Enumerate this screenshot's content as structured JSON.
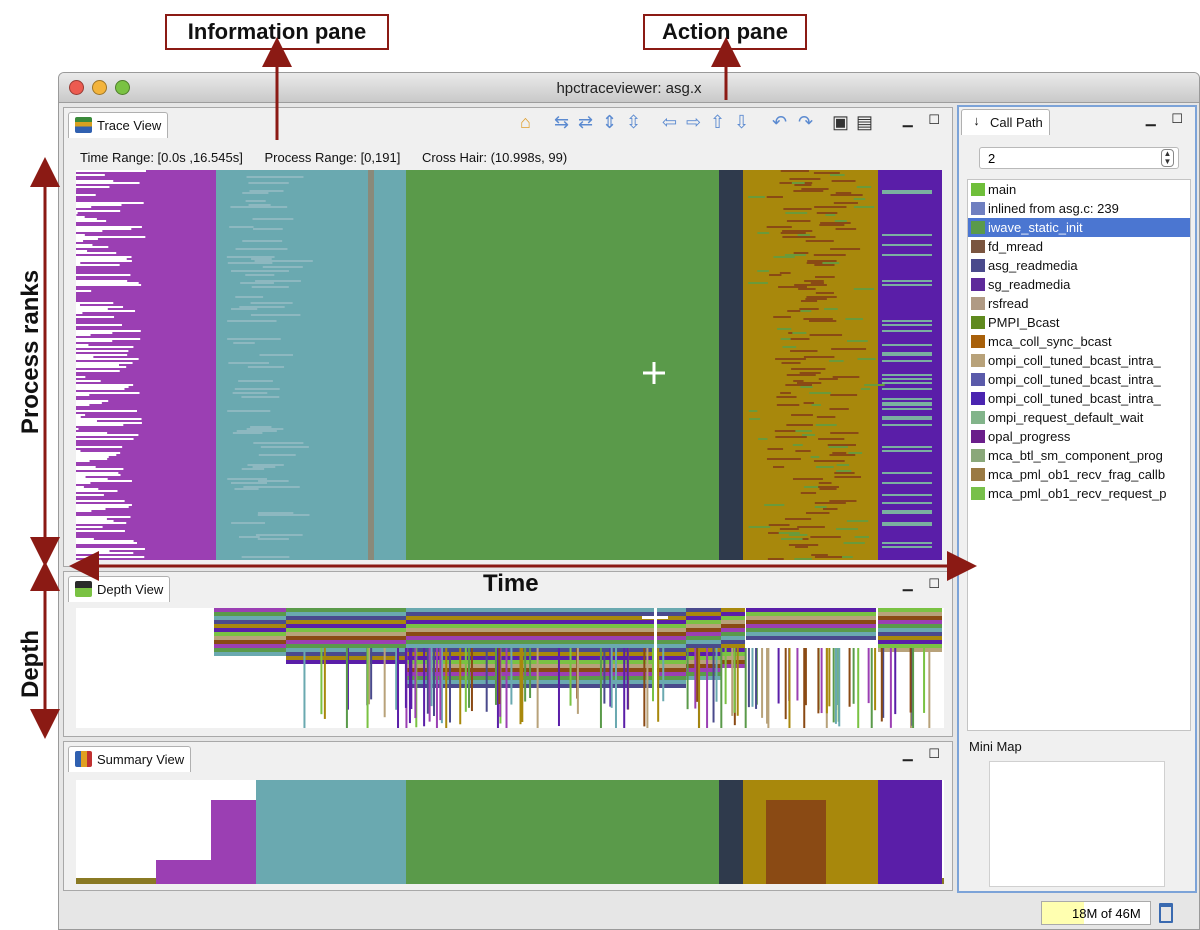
{
  "annotations": {
    "information_pane": "Information pane",
    "action_pane": "Action pane",
    "process_ranks": "Process ranks",
    "time": "Time",
    "depth": "Depth"
  },
  "window": {
    "title": "hpctraceviewer: asg.x"
  },
  "trace_view": {
    "tab_label": "Trace View",
    "time_range": "Time Range: [0.0s ,16.545s]",
    "process_range": "Process Range: [0,191]",
    "cross_hair": "Cross Hair: (10.998s, 99)"
  },
  "toolbar": {
    "icons": [
      "home-icon",
      "expand-time-icon",
      "shrink-time-icon",
      "expand-process-icon",
      "shrink-process-icon",
      "left-arrow-icon",
      "right-arrow-icon",
      "up-arrow-icon",
      "down-arrow-icon",
      "undo-icon",
      "redo-icon",
      "save-icon",
      "open-icon"
    ]
  },
  "depth_view": {
    "tab_label": "Depth View"
  },
  "summary_view": {
    "tab_label": "Summary View"
  },
  "call_path": {
    "tab_label": "Call Path",
    "depth_value": "2",
    "items": [
      {
        "label": "main",
        "color": "#6fbf3a"
      },
      {
        "label": "inlined from asg.c: 239",
        "color": "#6f7fc0"
      },
      {
        "label": "iwave_static_init",
        "color": "#5a9a4a"
      },
      {
        "label": "fd_mread",
        "color": "#7a5540"
      },
      {
        "label": "asg_readmedia",
        "color": "#4a4a8c"
      },
      {
        "label": "sg_readmedia",
        "color": "#5e2a9a"
      },
      {
        "label": "rsfread",
        "color": "#b09a84"
      },
      {
        "label": "PMPI_Bcast",
        "color": "#5f8a1e"
      },
      {
        "label": "mca_coll_sync_bcast",
        "color": "#a8600a"
      },
      {
        "label": "ompi_coll_tuned_bcast_intra_",
        "color": "#b8a27a"
      },
      {
        "label": "ompi_coll_tuned_bcast_intra_",
        "color": "#5a5aaa"
      },
      {
        "label": "ompi_coll_tuned_bcast_intra_",
        "color": "#4a24b0"
      },
      {
        "label": "ompi_request_default_wait",
        "color": "#82b48a"
      },
      {
        "label": "opal_progress",
        "color": "#6a1e8a"
      },
      {
        "label": "mca_btl_sm_component_prog",
        "color": "#8aa87a"
      },
      {
        "label": "mca_pml_ob1_recv_frag_callb",
        "color": "#9a7a44"
      },
      {
        "label": "mca_pml_ob1_recv_request_p",
        "color": "#78c04a"
      }
    ],
    "selected_index": 2,
    "minimap_label": "Mini Map"
  },
  "status": {
    "memory": "18M of 46M",
    "memory_fraction": 0.39
  },
  "colors": {
    "purple": "#9b3fb3",
    "teal": "#6aa9b0",
    "green": "#5a9a4a",
    "dark": "#2f3a4c",
    "olive": "#a8880c",
    "violet": "#5a1ea8",
    "callout_border": "#8b1a14"
  }
}
